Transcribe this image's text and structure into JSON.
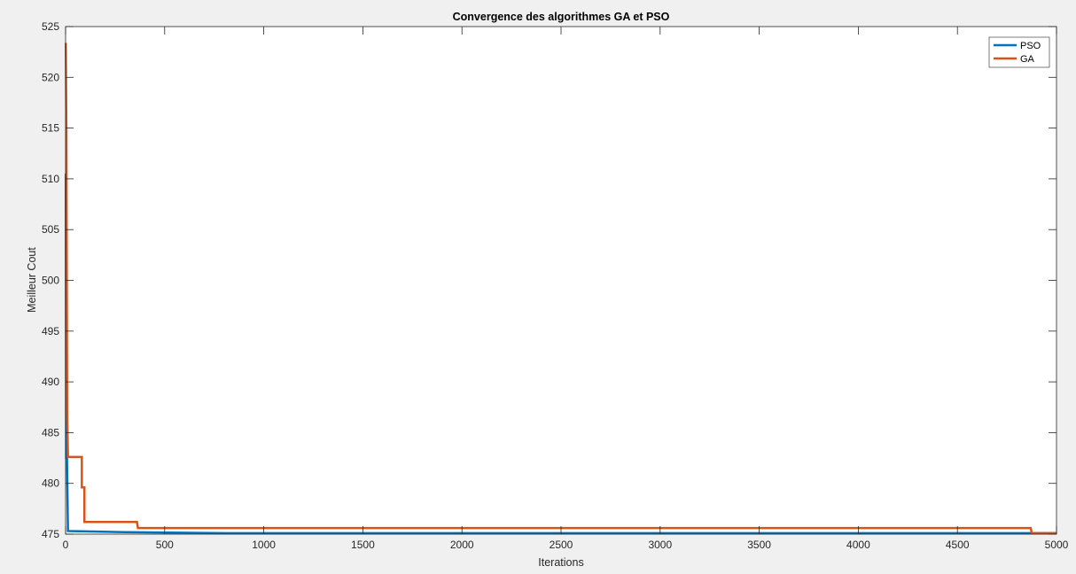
{
  "chart_data": {
    "type": "line",
    "title": "Convergence des algorithmes GA et PSO",
    "xlabel": "Iterations",
    "ylabel": "Meilleur Cout",
    "xlim": [
      0,
      5000
    ],
    "ylim": [
      475,
      525
    ],
    "xticks": [
      0,
      500,
      1000,
      1500,
      2000,
      2500,
      3000,
      3500,
      4000,
      4500,
      5000
    ],
    "yticks": [
      475,
      480,
      485,
      490,
      495,
      500,
      505,
      510,
      515,
      520,
      525
    ],
    "grid": false,
    "legend_position": "top-right",
    "series": [
      {
        "name": "PSO",
        "color": "#0072BD",
        "points": [
          [
            1,
            510.5
          ],
          [
            3,
            482.5
          ],
          [
            7,
            482.5
          ],
          [
            12,
            475.3
          ],
          [
            300,
            475.2
          ],
          [
            800,
            475.1
          ],
          [
            5000,
            475.1
          ]
        ]
      },
      {
        "name": "GA",
        "color": "#D95319",
        "points": [
          [
            1,
            523.4
          ],
          [
            4,
            515
          ],
          [
            8,
            487
          ],
          [
            12,
            482.6
          ],
          [
            82,
            482.6
          ],
          [
            82,
            479.6
          ],
          [
            95,
            479.6
          ],
          [
            95,
            476.2
          ],
          [
            360,
            476.2
          ],
          [
            365,
            475.6
          ],
          [
            4870,
            475.6
          ],
          [
            4875,
            475.1
          ],
          [
            5000,
            475.1
          ]
        ]
      }
    ]
  }
}
